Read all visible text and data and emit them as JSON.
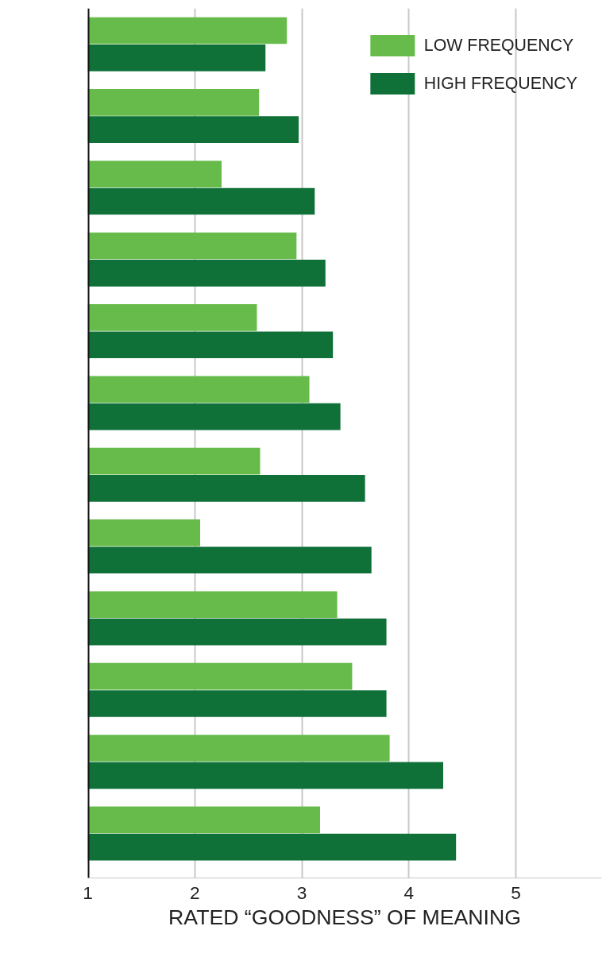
{
  "chart_data": {
    "type": "bar",
    "orientation": "horizontal",
    "xlabel": "RATED “GOODNESS” OF MEANING",
    "categories": [
      null,
      null,
      null,
      null,
      null,
      null,
      null,
      null,
      null,
      null,
      null,
      null
    ],
    "series": [
      {
        "name": "LOW FREQUENCY",
        "color": "#66bb4a",
        "values": [
          2.86,
          2.6,
          2.25,
          2.95,
          2.58,
          3.07,
          2.61,
          2.05,
          3.33,
          3.47,
          3.82,
          3.17
        ]
      },
      {
        "name": "HIGH FREQUENCY",
        "color": "#0f7038",
        "values": [
          2.66,
          2.97,
          3.12,
          3.22,
          3.29,
          3.36,
          3.59,
          3.65,
          3.79,
          3.79,
          4.32,
          4.44
        ]
      }
    ],
    "xlim": [
      1,
      5.8
    ],
    "xticks": [
      1,
      2,
      3,
      4,
      5
    ],
    "grid": "x",
    "legend": "top right",
    "tick_labels": "x"
  }
}
